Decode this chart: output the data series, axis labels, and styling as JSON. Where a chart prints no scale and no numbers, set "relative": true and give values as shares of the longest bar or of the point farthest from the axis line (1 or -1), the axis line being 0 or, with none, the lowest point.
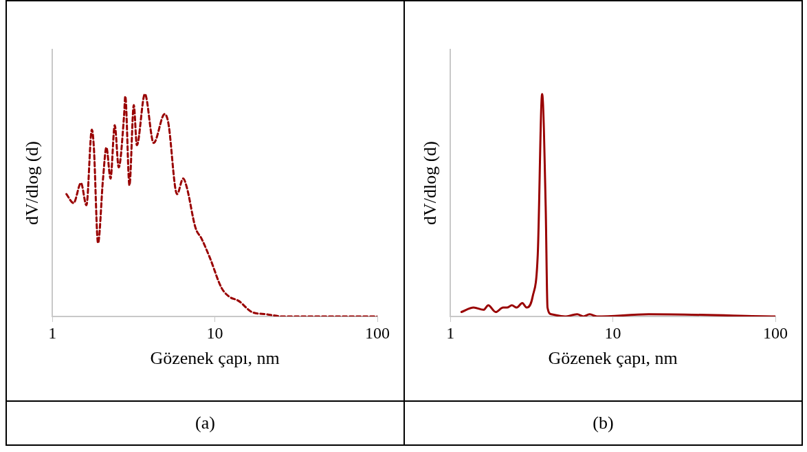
{
  "chart_data": [
    {
      "type": "line",
      "xlabel": "Gözenek çapı, nm",
      "ylabel": "dV/dlog (d)",
      "annotations": [
        "(a)"
      ],
      "relative": true,
      "log": "x",
      "xlim": [
        1,
        100
      ],
      "xticks": [
        1,
        10,
        100
      ],
      "line_style": "dashed",
      "color": "#990000",
      "x": [
        1.22,
        1.35,
        1.5,
        1.62,
        1.75,
        1.8,
        1.91,
        2.05,
        2.15,
        2.28,
        2.42,
        2.56,
        2.76,
        2.81,
        2.98,
        3.17,
        3.31,
        3.71,
        4.2,
        4.91,
        5.17,
        5.85,
        6.38,
        6.72,
        7.59,
        8.28,
        9.36,
        10.96,
        12.2,
        14.0,
        16.9,
        20.8,
        26.2,
        39.8,
        100
      ],
      "values": [
        0.55,
        0.51,
        0.6,
        0.5,
        0.84,
        0.76,
        0.33,
        0.62,
        0.76,
        0.62,
        0.86,
        0.67,
        0.9,
        0.99,
        0.59,
        0.95,
        0.77,
        1.0,
        0.78,
        0.91,
        0.87,
        0.55,
        0.62,
        0.58,
        0.4,
        0.35,
        0.26,
        0.13,
        0.09,
        0.07,
        0.02,
        0.01,
        0,
        0,
        0
      ]
    },
    {
      "type": "line",
      "xlabel": "Gözenek çapı, nm",
      "ylabel": "dV/dlog (d)",
      "annotations": [
        "(b)"
      ],
      "relative": true,
      "log": "x",
      "xlim": [
        1,
        100
      ],
      "xticks": [
        1,
        10,
        100
      ],
      "line_style": "solid",
      "color": "#990000",
      "x": [
        1.17,
        1.39,
        1.6,
        1.71,
        1.9,
        2.11,
        2.23,
        2.39,
        2.56,
        2.77,
        2.95,
        3.21,
        3.45,
        3.67,
        3.86,
        3.96,
        4.18,
        5.07,
        6.03,
        6.59,
        7.19,
        7.98,
        16.6,
        100
      ],
      "values": [
        0.02,
        0.04,
        0.03,
        0.05,
        0.02,
        0.04,
        0.04,
        0.05,
        0.04,
        0.06,
        0.04,
        0.09,
        0.28,
        1.0,
        0.49,
        0.04,
        0.01,
        0,
        0.01,
        0,
        0.01,
        0,
        0.01,
        0
      ]
    }
  ]
}
